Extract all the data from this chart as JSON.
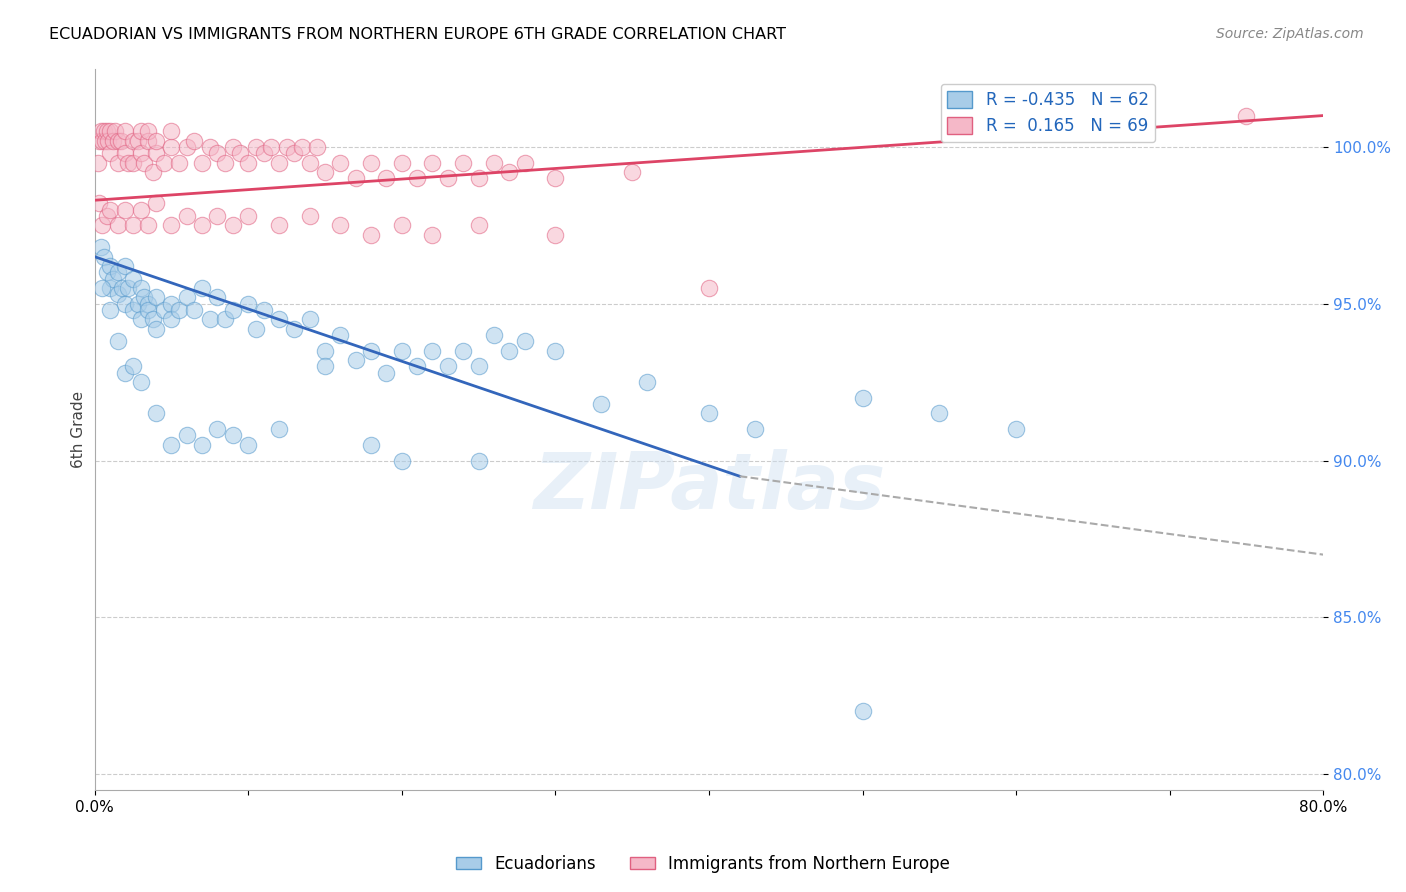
{
  "title": "ECUADORIAN VS IMMIGRANTS FROM NORTHERN EUROPE 6TH GRADE CORRELATION CHART",
  "source": "Source: ZipAtlas.com",
  "ylabel": "6th Grade",
  "yticks": [
    80.0,
    85.0,
    90.0,
    95.0,
    100.0
  ],
  "ytick_labels": [
    "80.0%",
    "85.0%",
    "90.0%",
    "95.0%",
    "100.0%"
  ],
  "xlim": [
    0.0,
    80.0
  ],
  "ylim": [
    79.5,
    102.5
  ],
  "blue_R": -0.435,
  "blue_N": 62,
  "pink_R": 0.165,
  "pink_N": 69,
  "blue_color": "#a8cce8",
  "pink_color": "#f5b8c8",
  "blue_edge_color": "#5599cc",
  "pink_edge_color": "#e06080",
  "blue_line_color": "#3366bb",
  "pink_line_color": "#dd4466",
  "watermark": "ZIPatlas",
  "blue_line_x0": 0.0,
  "blue_line_y0": 96.5,
  "blue_line_x1": 42.0,
  "blue_line_y1": 89.5,
  "blue_dash_x1": 80.0,
  "blue_dash_y1": 87.0,
  "pink_line_x0": 0.0,
  "pink_line_y0": 98.3,
  "pink_line_x1": 80.0,
  "pink_line_y1": 101.0,
  "blue_scatter_x": [
    0.4,
    0.6,
    0.8,
    1.0,
    1.0,
    1.2,
    1.5,
    1.5,
    1.8,
    2.0,
    2.0,
    2.2,
    2.5,
    2.5,
    2.8,
    3.0,
    3.0,
    3.2,
    3.5,
    3.5,
    3.8,
    4.0,
    4.0,
    4.5,
    5.0,
    5.0,
    5.5,
    6.0,
    6.5,
    7.0,
    7.5,
    8.0,
    8.5,
    9.0,
    10.0,
    10.5,
    11.0,
    12.0,
    13.0,
    14.0,
    15.0,
    16.0,
    17.0,
    18.0,
    19.0,
    20.0,
    21.0,
    22.0,
    23.0,
    24.0,
    25.0,
    26.0,
    27.0,
    28.0,
    30.0,
    33.0,
    36.0,
    40.0,
    43.0,
    50.0,
    55.0,
    60.0
  ],
  "blue_scatter_y": [
    96.8,
    96.5,
    96.0,
    96.2,
    95.5,
    95.8,
    96.0,
    95.3,
    95.5,
    96.2,
    95.0,
    95.5,
    95.8,
    94.8,
    95.0,
    95.5,
    94.5,
    95.2,
    95.0,
    94.8,
    94.5,
    95.2,
    94.2,
    94.8,
    95.0,
    94.5,
    94.8,
    95.2,
    94.8,
    95.5,
    94.5,
    95.2,
    94.5,
    94.8,
    95.0,
    94.2,
    94.8,
    94.5,
    94.2,
    94.5,
    93.5,
    94.0,
    93.2,
    93.5,
    92.8,
    93.5,
    93.0,
    93.5,
    93.0,
    93.5,
    93.0,
    94.0,
    93.5,
    93.8,
    93.5,
    91.8,
    92.5,
    91.5,
    91.0,
    92.0,
    91.5,
    91.0
  ],
  "blue_scatter_x2": [
    0.5,
    1.0,
    1.5,
    2.0,
    2.5,
    3.0,
    4.0,
    5.0,
    6.0,
    7.0,
    8.0,
    9.0,
    10.0,
    12.0,
    15.0,
    18.0,
    20.0,
    25.0,
    50.0
  ],
  "blue_scatter_y2": [
    95.5,
    94.8,
    93.8,
    92.8,
    93.0,
    92.5,
    91.5,
    90.5,
    90.8,
    90.5,
    91.0,
    90.8,
    90.5,
    91.0,
    93.0,
    90.5,
    90.0,
    90.0,
    82.0
  ],
  "pink_scatter_x": [
    0.2,
    0.3,
    0.4,
    0.5,
    0.6,
    0.7,
    0.8,
    0.9,
    1.0,
    1.0,
    1.2,
    1.3,
    1.5,
    1.5,
    1.7,
    2.0,
    2.0,
    2.2,
    2.5,
    2.5,
    2.8,
    3.0,
    3.0,
    3.2,
    3.5,
    3.5,
    3.8,
    4.0,
    4.0,
    4.5,
    5.0,
    5.0,
    5.5,
    6.0,
    6.5,
    7.0,
    7.5,
    8.0,
    8.5,
    9.0,
    9.5,
    10.0,
    10.5,
    11.0,
    11.5,
    12.0,
    12.5,
    13.0,
    13.5,
    14.0,
    14.5,
    15.0,
    16.0,
    17.0,
    18.0,
    19.0,
    20.0,
    21.0,
    22.0,
    23.0,
    24.0,
    25.0,
    26.0,
    27.0,
    28.0,
    30.0,
    35.0,
    40.0,
    75.0
  ],
  "pink_scatter_y": [
    99.5,
    100.2,
    100.5,
    100.2,
    100.5,
    100.2,
    100.5,
    100.2,
    100.5,
    99.8,
    100.2,
    100.5,
    100.2,
    99.5,
    100.2,
    99.8,
    100.5,
    99.5,
    100.2,
    99.5,
    100.2,
    99.8,
    100.5,
    99.5,
    100.2,
    100.5,
    99.2,
    99.8,
    100.2,
    99.5,
    100.0,
    100.5,
    99.5,
    100.0,
    100.2,
    99.5,
    100.0,
    99.8,
    99.5,
    100.0,
    99.8,
    99.5,
    100.0,
    99.8,
    100.0,
    99.5,
    100.0,
    99.8,
    100.0,
    99.5,
    100.0,
    99.2,
    99.5,
    99.0,
    99.5,
    99.0,
    99.5,
    99.0,
    99.5,
    99.0,
    99.5,
    99.0,
    99.5,
    99.2,
    99.5,
    99.0,
    99.2,
    95.5,
    101.0
  ],
  "pink_scatter_x2": [
    0.3,
    0.5,
    0.8,
    1.0,
    1.5,
    2.0,
    2.5,
    3.0,
    3.5,
    4.0,
    5.0,
    6.0,
    7.0,
    8.0,
    9.0,
    10.0,
    12.0,
    14.0,
    16.0,
    18.0,
    20.0,
    22.0,
    25.0,
    30.0
  ],
  "pink_scatter_y2": [
    98.2,
    97.5,
    97.8,
    98.0,
    97.5,
    98.0,
    97.5,
    98.0,
    97.5,
    98.2,
    97.5,
    97.8,
    97.5,
    97.8,
    97.5,
    97.8,
    97.5,
    97.8,
    97.5,
    97.2,
    97.5,
    97.2,
    97.5,
    97.2
  ]
}
